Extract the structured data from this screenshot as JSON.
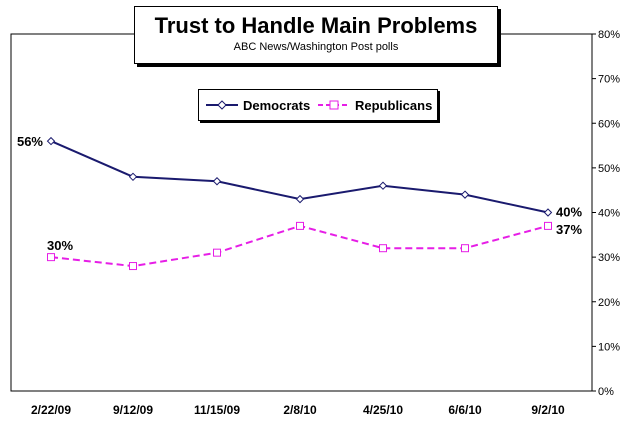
{
  "chart_data": {
    "type": "line",
    "title": "Trust to Handle Main Problems",
    "subtitle": "ABC News/Washington Post polls",
    "categories": [
      "2/22/09",
      "9/12/09",
      "11/15/09",
      "2/8/10",
      "4/25/10",
      "6/6/10",
      "9/2/10"
    ],
    "ylim": [
      0,
      80
    ],
    "yticks": [
      "0%",
      "10%",
      "20%",
      "30%",
      "40%",
      "50%",
      "60%",
      "70%",
      "80%"
    ],
    "y_axis_side": "right",
    "grid": false,
    "legend_position": "top-center",
    "series": [
      {
        "name": "Democrats",
        "values": [
          56,
          48,
          47,
          43,
          46,
          44,
          40
        ],
        "color": "#1a1a6e",
        "dash": "solid",
        "marker": "diamond"
      },
      {
        "name": "Republicans",
        "values": [
          30,
          28,
          31,
          37,
          32,
          32,
          37
        ],
        "color": "#e61ee6",
        "dash": "dashed",
        "marker": "square"
      }
    ],
    "data_labels": [
      {
        "series": 0,
        "index": 0,
        "text": "56%"
      },
      {
        "series": 0,
        "index": 6,
        "text": "40%"
      },
      {
        "series": 1,
        "index": 0,
        "text": "30%"
      },
      {
        "series": 1,
        "index": 6,
        "text": "37%"
      }
    ]
  }
}
